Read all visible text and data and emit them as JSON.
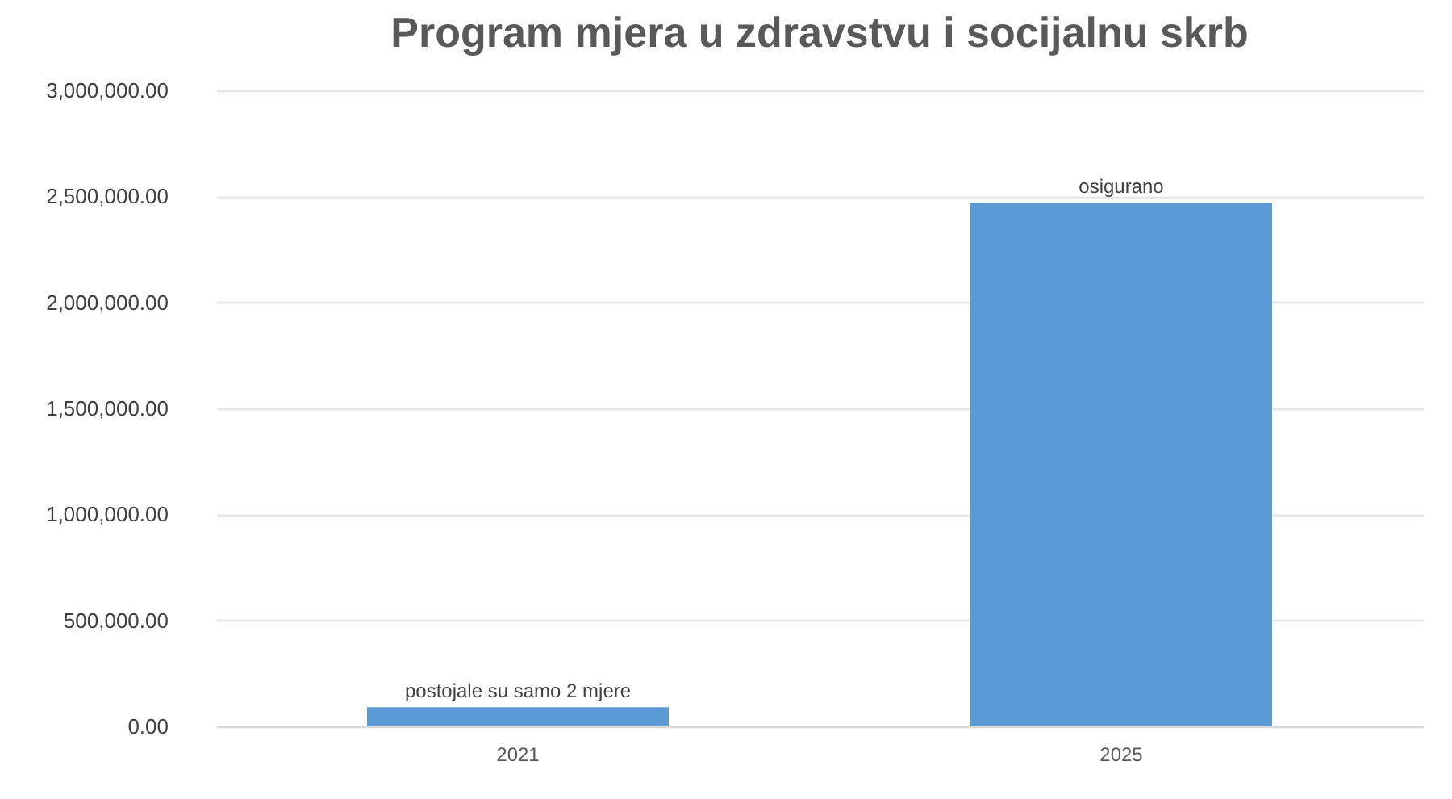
{
  "chart_data": {
    "type": "bar",
    "title": "Program mjera u zdravstvu i socijalnu skrb",
    "categories": [
      "2021",
      "2025"
    ],
    "values": [
      90000,
      2470000
    ],
    "color": "#5b9bd5",
    "ylim": [
      0,
      3000000
    ],
    "yticks": [
      {
        "value": 0,
        "label": "0.00"
      },
      {
        "value": 500000,
        "label": "500,000.00"
      },
      {
        "value": 1000000,
        "label": "1,000,000.00"
      },
      {
        "value": 1500000,
        "label": "1,500,000.00"
      },
      {
        "value": 2000000,
        "label": "2,000,000.00"
      },
      {
        "value": 2500000,
        "label": "2,500,000.00"
      },
      {
        "value": 3000000,
        "label": "3,000,000.00"
      }
    ],
    "grid": "y",
    "annotations": [
      {
        "text": "postojale su samo 2 mjere",
        "x": "2021",
        "y": 90000
      },
      {
        "text": "osigurano",
        "x": "2025",
        "y": 2470000
      }
    ]
  }
}
